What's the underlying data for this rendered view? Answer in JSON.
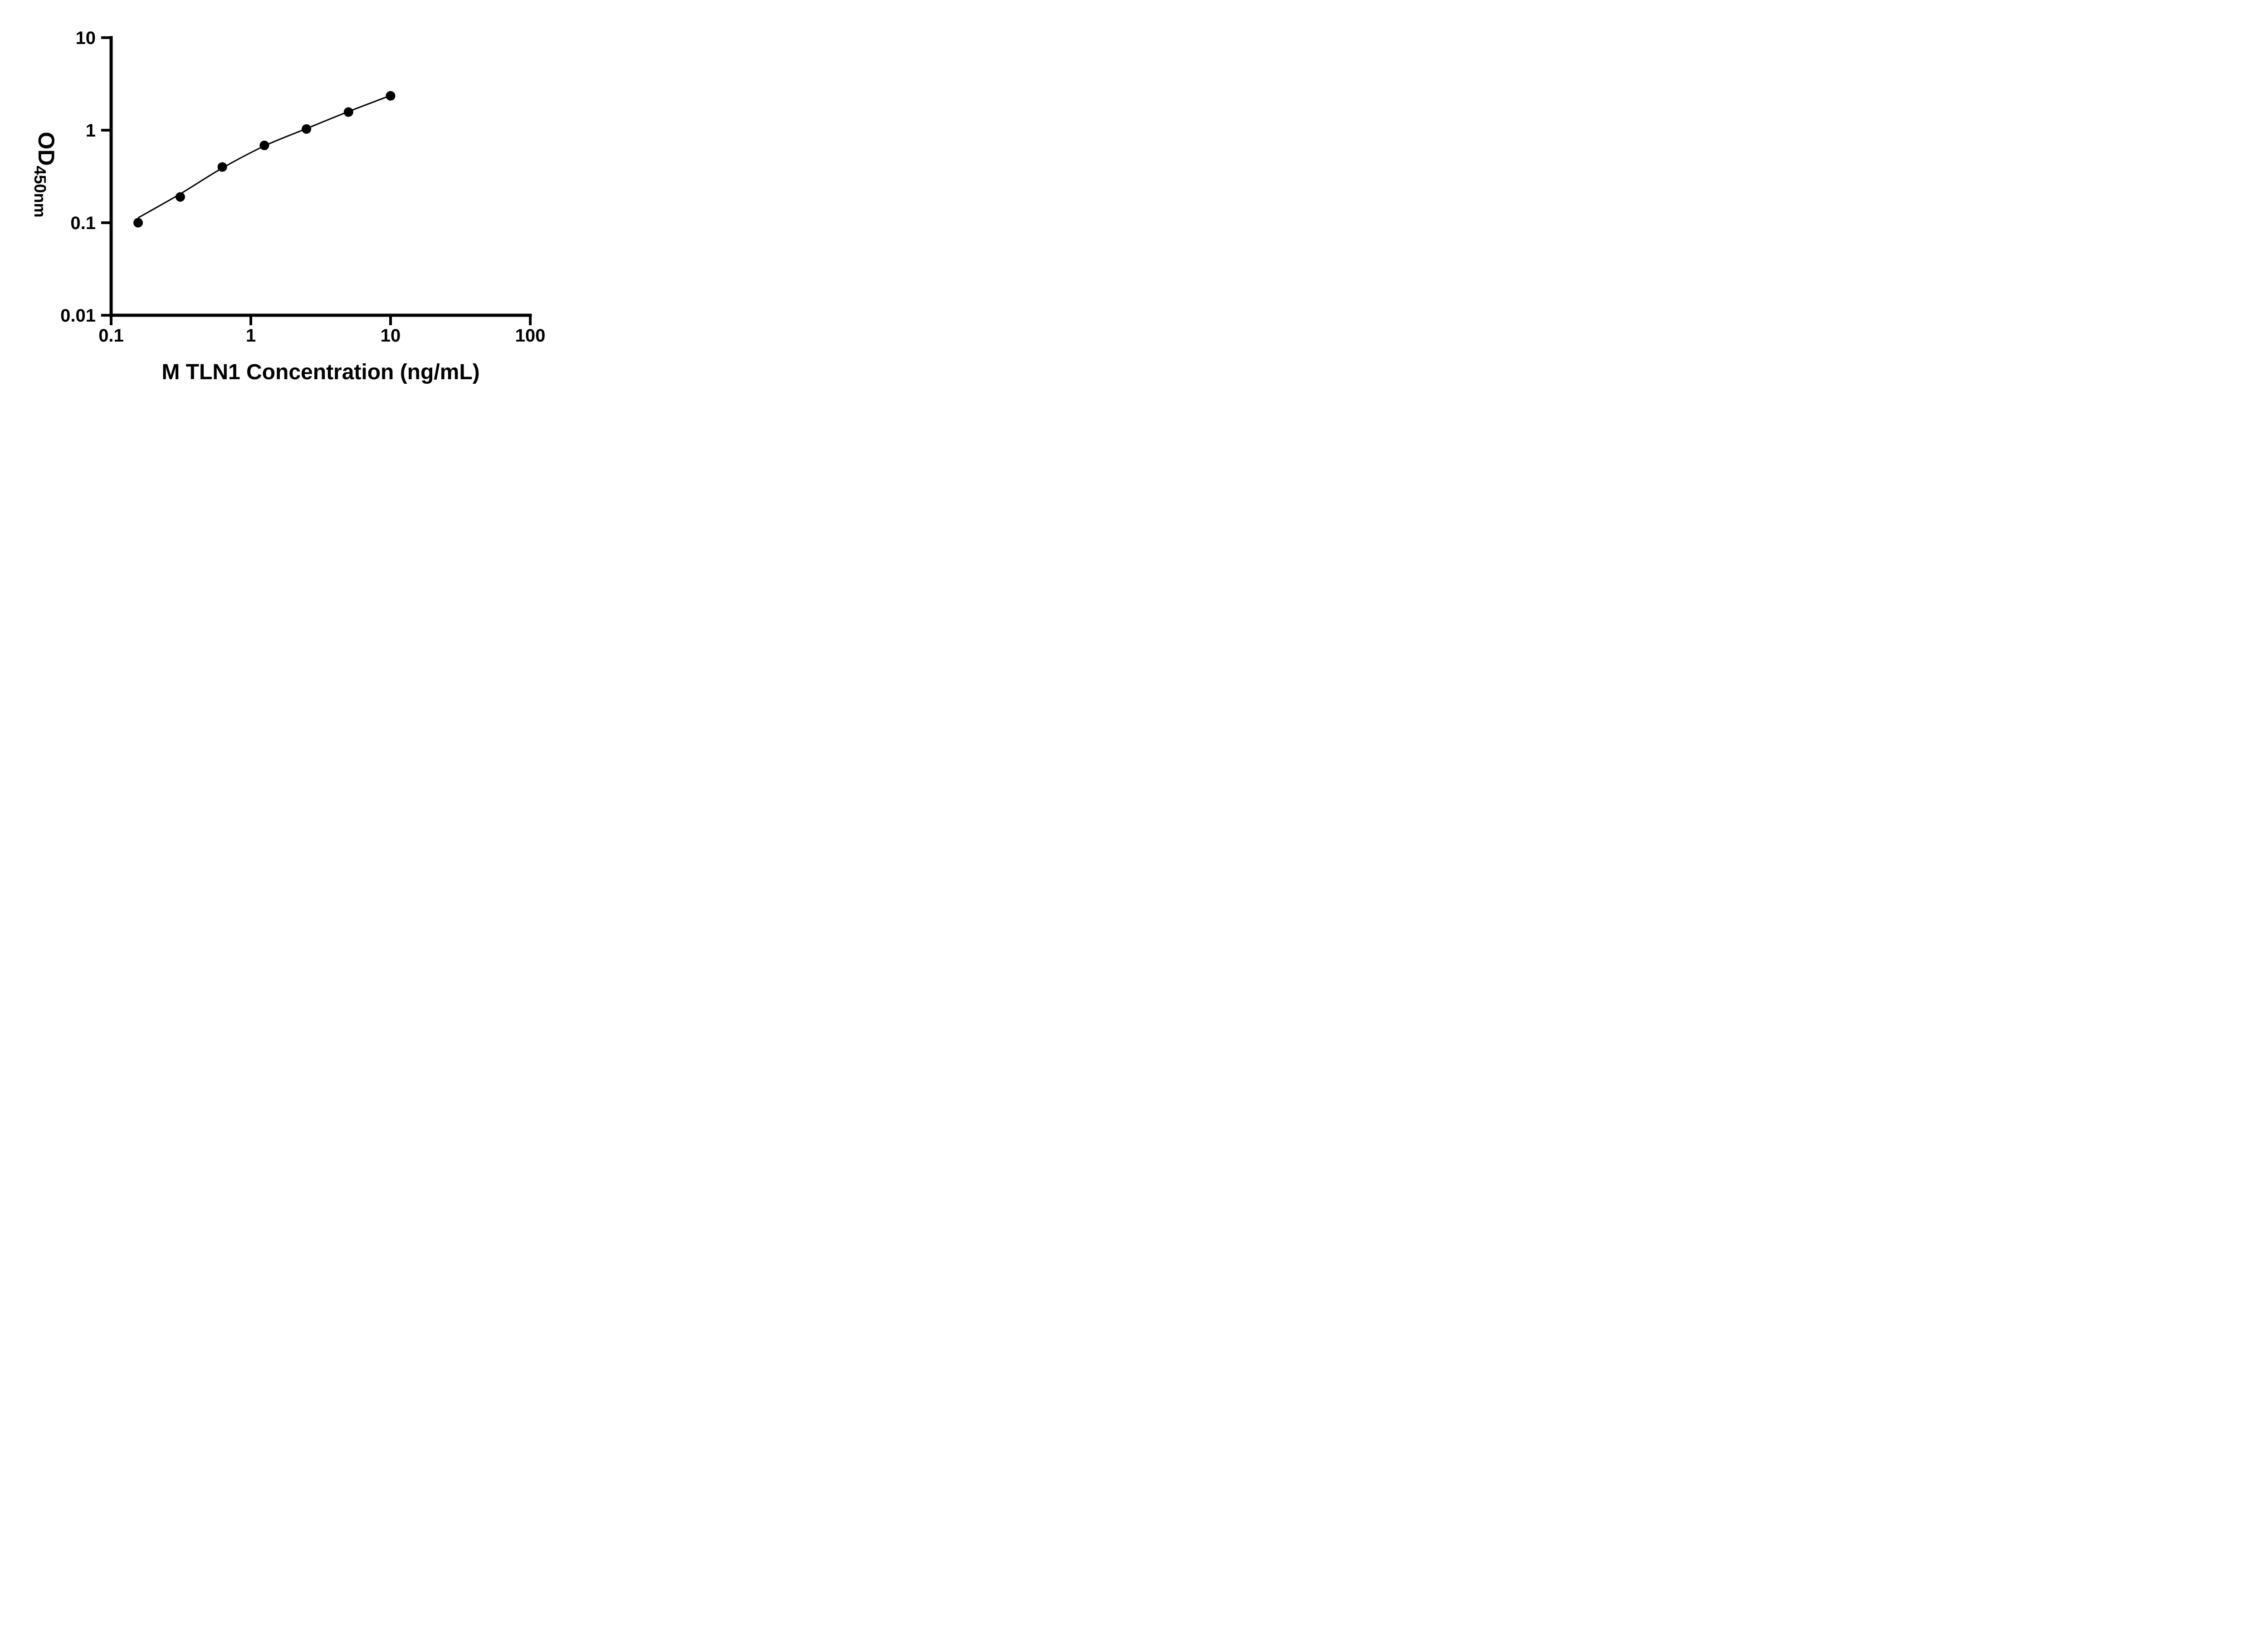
{
  "colors": {
    "ink": "#000000",
    "background": "#ffffff"
  },
  "chart_data": {
    "type": "scatter",
    "title": "",
    "xlabel": "M TLN1 Concentration (ng/mL)",
    "ylabel": "OD450nm",
    "ylabel_prefix": "OD",
    "ylabel_subscript": "450nm",
    "x_scale": "log10",
    "y_scale": "log10",
    "xlim": [
      0.1,
      100
    ],
    "ylim": [
      0.01,
      10
    ],
    "grid": false,
    "legend": false,
    "x_ticks": [
      {
        "value": 0.1,
        "label": "0.1"
      },
      {
        "value": 1,
        "label": "1"
      },
      {
        "value": 10,
        "label": "10"
      },
      {
        "value": 100,
        "label": "100"
      }
    ],
    "y_ticks": [
      {
        "value": 0.01,
        "label": "0.01"
      },
      {
        "value": 0.1,
        "label": "0.1"
      },
      {
        "value": 1,
        "label": "1"
      },
      {
        "value": 10,
        "label": "10"
      }
    ],
    "series": [
      {
        "name": "fit-curve",
        "type": "line",
        "color": "#000000",
        "x": [
          0.156,
          0.3125,
          0.625,
          1.25,
          2.5,
          5,
          10
        ],
        "y": [
          0.113,
          0.205,
          0.39,
          0.675,
          1.04,
          1.59,
          2.37
        ]
      },
      {
        "name": "standard-points",
        "type": "scatter",
        "marker": "filled-circle",
        "color": "#000000",
        "x": [
          0.156,
          0.3125,
          0.625,
          1.25,
          2.5,
          5,
          10
        ],
        "y": [
          0.1,
          0.19,
          0.4,
          0.685,
          1.03,
          1.57,
          2.35
        ]
      }
    ]
  }
}
